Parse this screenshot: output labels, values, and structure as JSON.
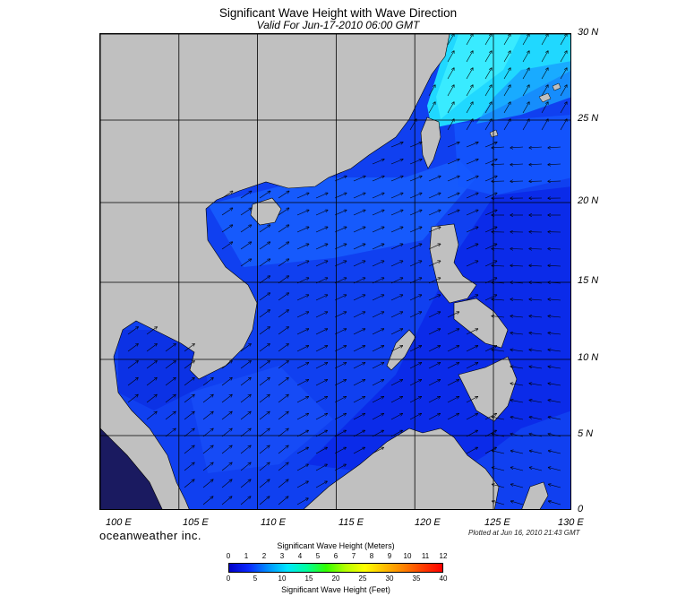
{
  "title": "Significant Wave Height with Wave Direction",
  "subtitle": "Valid For Jun-17-2010 06:00 GMT",
  "brand": "oceanweather inc.",
  "plotted": "Plotted at Jun 16, 2010 21:43 GMT",
  "lat_labels": [
    "30 N",
    "25 N",
    "20 N",
    "15 N",
    "10 N",
    "5 N",
    "0"
  ],
  "lon_labels": [
    "100 E",
    "105 E",
    "110 E",
    "115 E",
    "120 E",
    "125 E",
    "130 E"
  ],
  "colorbar": {
    "title_meters": "Significant Wave Height (Meters)",
    "title_feet": "Significant Wave Height (Feet)",
    "meter_ticks": [
      "0",
      "1",
      "2",
      "3",
      "4",
      "5",
      "6",
      "7",
      "8",
      "9",
      "10",
      "11",
      "12"
    ],
    "feet_ticks": [
      "0",
      "5",
      "10",
      "15",
      "20",
      "25",
      "30",
      "35",
      "40"
    ],
    "colors": [
      "#0000c8",
      "#0a28ff",
      "#0090ff",
      "#00e6ff",
      "#00ff9c",
      "#32ff00",
      "#b4ff00",
      "#ffff00",
      "#ffbe00",
      "#ff8200",
      "#ff3c00",
      "#ff0000"
    ]
  },
  "colors": {
    "land": "#c0c0c0",
    "sea_deep": "#0a1fd0",
    "sea_mid": "#1040f0",
    "sea_light": "#1a70ff",
    "sea_cyan": "#20e0ff",
    "arrow": "#000000",
    "grid": "#000000"
  }
}
